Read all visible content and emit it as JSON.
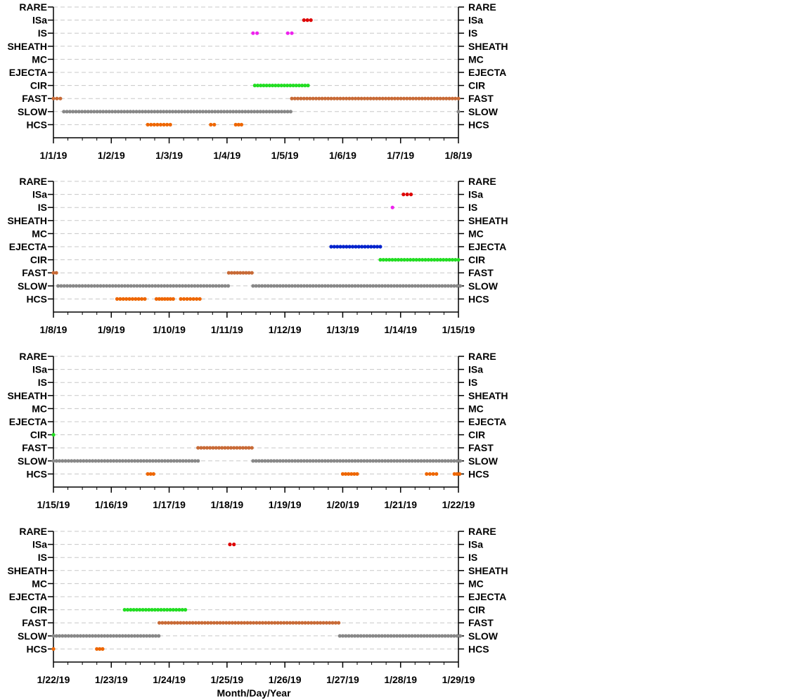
{
  "figure": {
    "xlabel": "Month/Day/Year"
  },
  "colors": {
    "ISa": "#dd0000",
    "IS": "#ee22ee",
    "CIR": "#22dd22",
    "EJECTA": "#0022cc",
    "FAST": "#c86a36",
    "SLOW": "#888888",
    "HCS": "#ee6600",
    "grid": "#c8c8c8"
  },
  "chart_data": [
    {
      "type": "scatter",
      "categories": [
        "RARE",
        "ISa",
        "IS",
        "SHEATH",
        "MC",
        "EJECTA",
        "CIR",
        "FAST",
        "SLOW",
        "HCS"
      ],
      "xlim": [
        0,
        7
      ],
      "xticks": [
        "1/1/19",
        "1/2/19",
        "1/3/19",
        "1/4/19",
        "1/5/19",
        "1/6/19",
        "1/7/19",
        "1/8/19"
      ],
      "grid": true,
      "series": [
        {
          "category": "ISa",
          "segments": [
            [
              4.33,
              4.45
            ]
          ]
        },
        {
          "category": "IS",
          "segments": [
            [
              3.45,
              3.52
            ],
            [
              4.05,
              4.12
            ]
          ]
        },
        {
          "category": "CIR",
          "segments": [
            [
              3.48,
              4.4
            ]
          ]
        },
        {
          "category": "FAST",
          "segments": [
            [
              0.0,
              0.12
            ],
            [
              4.12,
              7.0
            ]
          ]
        },
        {
          "category": "SLOW",
          "segments": [
            [
              0.18,
              4.1
            ],
            [
              7.0,
              7.02
            ]
          ]
        },
        {
          "category": "HCS",
          "segments": [
            [
              1.63,
              2.02
            ],
            [
              2.72,
              2.78
            ],
            [
              3.15,
              3.25
            ]
          ]
        }
      ]
    },
    {
      "type": "scatter",
      "categories": [
        "RARE",
        "ISa",
        "IS",
        "SHEATH",
        "MC",
        "EJECTA",
        "CIR",
        "FAST",
        "SLOW",
        "HCS"
      ],
      "xlim": [
        0,
        7
      ],
      "xticks": [
        "1/8/19",
        "1/9/19",
        "1/10/19",
        "1/11/19",
        "1/12/19",
        "1/13/19",
        "1/14/19",
        "1/15/19"
      ],
      "grid": true,
      "series": [
        {
          "category": "ISa",
          "segments": [
            [
              6.05,
              6.18
            ]
          ]
        },
        {
          "category": "IS",
          "segments": [
            [
              5.86,
              5.86
            ]
          ]
        },
        {
          "category": "EJECTA",
          "segments": [
            [
              4.8,
              5.65
            ]
          ]
        },
        {
          "category": "CIR",
          "segments": [
            [
              5.65,
              7.0
            ]
          ]
        },
        {
          "category": "FAST",
          "segments": [
            [
              0.0,
              0.05
            ],
            [
              3.03,
              3.43
            ]
          ]
        },
        {
          "category": "SLOW",
          "segments": [
            [
              0.08,
              3.02
            ],
            [
              3.45,
              7.03
            ]
          ]
        },
        {
          "category": "HCS",
          "segments": [
            [
              1.1,
              1.58
            ],
            [
              1.78,
              2.07
            ],
            [
              2.2,
              2.53
            ]
          ]
        }
      ]
    },
    {
      "type": "scatter",
      "categories": [
        "RARE",
        "ISa",
        "IS",
        "SHEATH",
        "MC",
        "EJECTA",
        "CIR",
        "FAST",
        "SLOW",
        "HCS"
      ],
      "xlim": [
        0,
        7
      ],
      "xticks": [
        "1/15/19",
        "1/16/19",
        "1/17/19",
        "1/18/19",
        "1/19/19",
        "1/20/19",
        "1/21/19",
        "1/22/19"
      ],
      "grid": true,
      "series": [
        {
          "category": "CIR",
          "segments": [
            [
              0.0,
              0.0
            ]
          ]
        },
        {
          "category": "FAST",
          "segments": [
            [
              2.5,
              3.43
            ]
          ]
        },
        {
          "category": "SLOW",
          "segments": [
            [
              0.0,
              2.5
            ],
            [
              3.45,
              7.03
            ]
          ]
        },
        {
          "category": "HCS",
          "segments": [
            [
              1.63,
              1.73
            ],
            [
              5.0,
              5.25
            ],
            [
              6.45,
              6.62
            ],
            [
              6.93,
              7.02
            ]
          ]
        }
      ]
    },
    {
      "type": "scatter",
      "categories": [
        "RARE",
        "ISa",
        "IS",
        "SHEATH",
        "MC",
        "EJECTA",
        "CIR",
        "FAST",
        "SLOW",
        "HCS"
      ],
      "xlim": [
        0,
        7
      ],
      "xticks": [
        "1/22/19",
        "1/23/19",
        "1/24/19",
        "1/25/19",
        "1/26/19",
        "1/27/19",
        "1/28/19",
        "1/29/19"
      ],
      "grid": true,
      "series": [
        {
          "category": "ISa",
          "segments": [
            [
              3.05,
              3.12
            ]
          ]
        },
        {
          "category": "CIR",
          "segments": [
            [
              1.23,
              2.28
            ]
          ]
        },
        {
          "category": "FAST",
          "segments": [
            [
              1.83,
              4.93
            ]
          ]
        },
        {
          "category": "SLOW",
          "segments": [
            [
              0.0,
              1.82
            ],
            [
              4.95,
              7.03
            ]
          ]
        },
        {
          "category": "HCS",
          "segments": [
            [
              0.0,
              0.0
            ],
            [
              0.75,
              0.85
            ]
          ]
        }
      ]
    }
  ]
}
